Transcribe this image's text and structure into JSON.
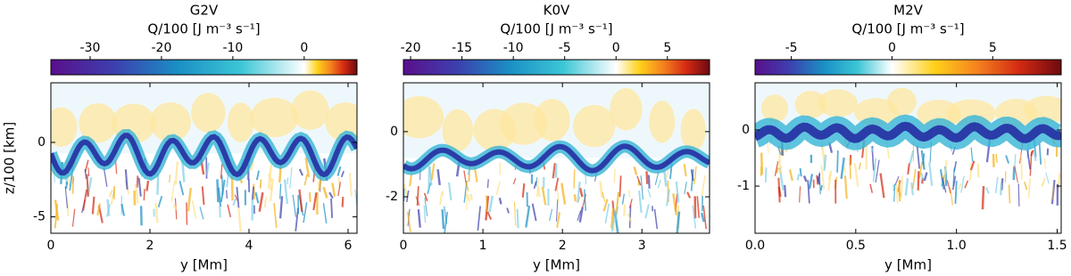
{
  "chart_data": [
    {
      "type": "heatmap",
      "title": "G2V",
      "colorbar_label": "Q/100 [J m⁻³ s⁻¹]",
      "clim": [
        -35.5,
        7.4
      ],
      "cticks": [
        -30,
        -20,
        -10,
        0
      ],
      "colormap_negative": [
        "#5a0f8c",
        "#3d3fae",
        "#1a8fc4",
        "#3cc6d6",
        "#ffffff"
      ],
      "colormap_positive": [
        "#ffffff",
        "#ffd21a",
        "#f5831f",
        "#d42a12",
        "#6e0a10"
      ],
      "xlabel": "y [Mm]",
      "ylabel": "z/100 [km]",
      "xlim": [
        0,
        6.18
      ],
      "xticks": [
        0,
        2,
        4,
        6
      ],
      "ylim": [
        -6.1,
        4
      ],
      "yticks": [
        -5,
        0
      ]
    },
    {
      "type": "heatmap",
      "title": "K0V",
      "colorbar_label": "Q/100 [J m⁻³ s⁻¹]",
      "clim": [
        -20.7,
        9.1
      ],
      "cticks": [
        -20,
        -15,
        -10,
        -5,
        0,
        5
      ],
      "colormap_negative": [
        "#5a0f8c",
        "#3d3fae",
        "#1a8fc4",
        "#3cc6d6",
        "#ffffff"
      ],
      "colormap_positive": [
        "#ffffff",
        "#ffd21a",
        "#f5831f",
        "#d42a12",
        "#6e0a10"
      ],
      "xlabel": "y [Mm]",
      "xlim": [
        0,
        3.85
      ],
      "xticks": [
        0,
        1,
        2,
        3
      ],
      "ylim": [
        -3.12,
        1.5
      ],
      "yticks": [
        -2,
        0
      ]
    },
    {
      "type": "heatmap",
      "title": "M2V",
      "colorbar_label": "Q/100 [J m⁻³ s⁻¹]",
      "clim": [
        -6.8,
        8.4
      ],
      "cticks": [
        -5,
        0,
        5
      ],
      "colormap_negative": [
        "#5a0f8c",
        "#3d3fae",
        "#1a8fc4",
        "#3cc6d6",
        "#ffffff"
      ],
      "colormap_positive": [
        "#ffffff",
        "#ffd21a",
        "#f5831f",
        "#d42a12",
        "#6e0a10"
      ],
      "xlabel": "y [Mm]",
      "xlim": [
        0,
        1.52
      ],
      "xticks": [
        {
          "value": 0,
          "label": "0.0"
        },
        0.5,
        {
          "value": 1,
          "label": "1.0"
        },
        1.5
      ],
      "ylim": [
        -1.84,
        0.84
      ],
      "yticks": [
        -1,
        0
      ]
    }
  ]
}
